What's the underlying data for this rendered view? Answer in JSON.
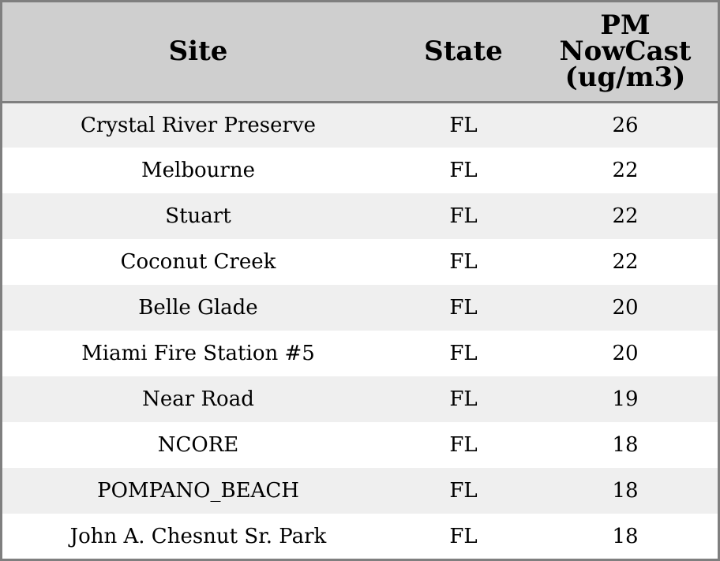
{
  "chart_data": {
    "type": "table",
    "columns": [
      "Site",
      "State",
      "PM NowCast (ug/m3)"
    ],
    "header_lines": {
      "site": [
        "Site"
      ],
      "state": [
        "State"
      ],
      "pm": [
        "PM",
        "NowCast",
        "(ug/m3)"
      ]
    },
    "rows": [
      {
        "site": "Crystal River Preserve",
        "state": "FL",
        "pm": 26
      },
      {
        "site": "Melbourne",
        "state": "FL",
        "pm": 22
      },
      {
        "site": "Stuart",
        "state": "FL",
        "pm": 22
      },
      {
        "site": "Coconut Creek",
        "state": "FL",
        "pm": 22
      },
      {
        "site": "Belle Glade",
        "state": "FL",
        "pm": 20
      },
      {
        "site": "Miami Fire Station #5",
        "state": "FL",
        "pm": 20
      },
      {
        "site": "Near Road",
        "state": "FL",
        "pm": 19
      },
      {
        "site": "NCORE",
        "state": "FL",
        "pm": 18
      },
      {
        "site": "POMPANO_BEACH",
        "state": "FL",
        "pm": 18
      },
      {
        "site": "John A. Chesnut Sr. Park",
        "state": "FL",
        "pm": 18
      }
    ]
  },
  "colors": {
    "header_bg": "#cfcfcf",
    "row_alt_bg": "#efefef",
    "row_bg": "#ffffff",
    "border": "#7f7f7f"
  }
}
